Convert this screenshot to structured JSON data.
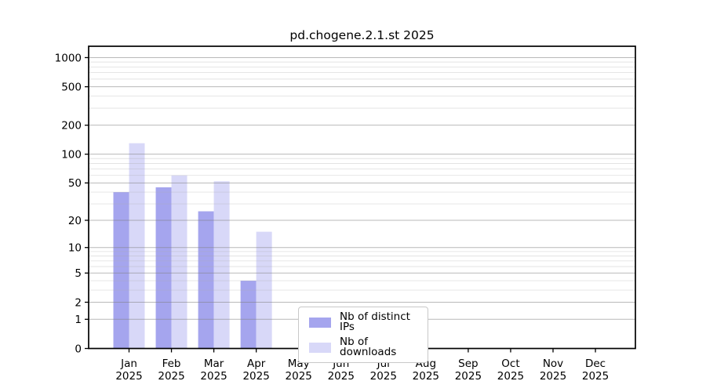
{
  "title": "pd.chogene.2.1.st 2025",
  "chart_data": {
    "type": "bar",
    "title": "pd.chogene.2.1.st 2025",
    "categories": [
      "Jan",
      "Feb",
      "Mar",
      "Apr",
      "May",
      "Jun",
      "Jul",
      "Aug",
      "Sep",
      "Oct",
      "Nov",
      "Dec"
    ],
    "category_year": "2025",
    "series": [
      {
        "name": "Nb of distinct IPs",
        "color": "#a5a5ee",
        "values": [
          40,
          45,
          25,
          4,
          0,
          0,
          0,
          0,
          0,
          0,
          0,
          0
        ]
      },
      {
        "name": "Nb of downloads",
        "color": "#d8d8f8",
        "values": [
          130,
          60,
          52,
          15,
          0,
          0,
          0,
          0,
          0,
          0,
          0,
          0
        ]
      }
    ],
    "y_axis": {
      "scale": "log10(1+y)",
      "ticks": [
        1000,
        500,
        200,
        100,
        50,
        20,
        10,
        5,
        2,
        1,
        0
      ],
      "minor_gridlines": [
        3,
        4,
        6,
        7,
        8,
        9,
        30,
        40,
        60,
        70,
        80,
        90,
        300,
        400,
        600,
        700,
        800,
        900
      ],
      "range": [
        0,
        1300
      ]
    },
    "x_axis": {
      "label_line2": "2025"
    },
    "grid": "both",
    "legend": {
      "position": "inside-bottom-center"
    },
    "colors": {
      "bar_distinct_ips": "#a5a5ee",
      "bar_downloads": "#d8d8f8",
      "grid_major": "#808080",
      "grid_minor": "#aaaaaa",
      "axis": "#000000",
      "text": "#000000",
      "background": "#ffffff"
    }
  }
}
